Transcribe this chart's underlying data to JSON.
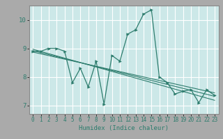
{
  "title": "",
  "xlabel": "Humidex (Indice chaleur)",
  "ylabel": "",
  "bg_color": "#cce8e8",
  "outer_bg": "#aaaaaa",
  "grid_color": "#ffffff",
  "line_color": "#2e7d6e",
  "marker_color": "#2e7d6e",
  "xlim": [
    -0.5,
    23.5
  ],
  "ylim": [
    6.7,
    10.5
  ],
  "xticks": [
    0,
    1,
    2,
    3,
    4,
    5,
    6,
    7,
    8,
    9,
    10,
    11,
    12,
    13,
    14,
    15,
    16,
    17,
    18,
    19,
    20,
    21,
    22,
    23
  ],
  "yticks": [
    7,
    8,
    9,
    10
  ],
  "data_x": [
    0,
    1,
    2,
    3,
    4,
    5,
    6,
    7,
    8,
    9,
    10,
    11,
    12,
    13,
    14,
    15,
    16,
    17,
    18,
    19,
    20,
    21,
    22,
    23
  ],
  "data_y": [
    8.9,
    8.9,
    9.0,
    9.0,
    8.9,
    7.8,
    8.3,
    7.65,
    8.55,
    7.05,
    8.75,
    8.55,
    9.5,
    9.65,
    10.2,
    10.35,
    8.0,
    7.8,
    7.4,
    7.5,
    7.55,
    7.1,
    7.55,
    7.35
  ],
  "reg_lines": [
    {
      "x0": 0,
      "y0": 8.97,
      "x1": 23,
      "y1": 7.18
    },
    {
      "x0": 0,
      "y0": 8.92,
      "x1": 23,
      "y1": 7.32
    },
    {
      "x0": 0,
      "y0": 8.87,
      "x1": 23,
      "y1": 7.44
    }
  ],
  "xlabel_fontsize": 6.5,
  "tick_fontsize": 5.5,
  "ytick_fontsize": 6.5,
  "spine_color": "#888888"
}
